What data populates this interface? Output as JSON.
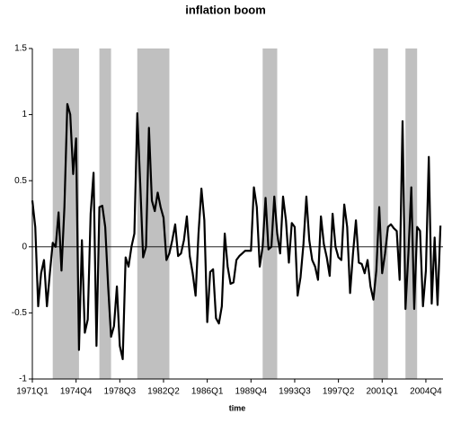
{
  "chart_data": {
    "type": "line",
    "title": "inflation boom",
    "x_label": "time",
    "categories": [
      "1971Q1",
      null,
      null,
      null,
      null,
      null,
      null,
      null,
      null,
      null,
      null,
      null,
      null,
      null,
      null,
      "1974Q4",
      null,
      null,
      null,
      null,
      null,
      null,
      null,
      null,
      null,
      null,
      null,
      null,
      null,
      null,
      "1978Q3",
      null,
      null,
      null,
      null,
      null,
      null,
      null,
      null,
      null,
      null,
      null,
      null,
      null,
      null,
      "1982Q2",
      null,
      null,
      null,
      null,
      null,
      null,
      null,
      null,
      null,
      null,
      null,
      null,
      null,
      null,
      "1986Q1",
      null,
      null,
      null,
      null,
      null,
      null,
      null,
      null,
      null,
      null,
      null,
      null,
      null,
      null,
      "1989Q4",
      null,
      null,
      null,
      null,
      null,
      null,
      null,
      null,
      null,
      null,
      null,
      null,
      null,
      null,
      "1993Q3",
      null,
      null,
      null,
      null,
      null,
      null,
      null,
      null,
      null,
      null,
      null,
      null,
      null,
      null,
      "1997Q2",
      null,
      null,
      null,
      null,
      null,
      null,
      null,
      null,
      null,
      null,
      null,
      null,
      null,
      null,
      "2001Q1",
      null,
      null,
      null,
      null,
      null,
      null,
      null,
      null,
      null,
      null,
      null,
      null,
      null,
      null,
      "2004Q4",
      null,
      null,
      null,
      null,
      null
    ],
    "values": [
      0.35,
      0.15,
      -0.45,
      -0.2,
      -0.1,
      -0.45,
      -0.2,
      0.03,
      0.0,
      0.26,
      -0.18,
      0.3,
      1.08,
      1.0,
      0.55,
      0.82,
      -0.78,
      0.05,
      -0.65,
      -0.55,
      0.25,
      0.56,
      -0.75,
      0.3,
      0.31,
      0.15,
      -0.3,
      -0.68,
      -0.6,
      -0.3,
      -0.75,
      -0.85,
      -0.08,
      -0.15,
      0.0,
      0.1,
      1.01,
      0.48,
      -0.08,
      0.0,
      0.9,
      0.35,
      0.27,
      0.41,
      0.3,
      0.22,
      -0.1,
      -0.05,
      0.05,
      0.17,
      -0.07,
      -0.05,
      0.05,
      0.23,
      -0.07,
      -0.2,
      -0.37,
      0.1,
      0.44,
      0.2,
      -0.57,
      -0.19,
      -0.17,
      -0.54,
      -0.58,
      -0.45,
      0.1,
      -0.15,
      -0.28,
      -0.27,
      -0.1,
      -0.07,
      -0.05,
      -0.03,
      -0.03,
      -0.03,
      0.45,
      0.3,
      -0.15,
      0.0,
      0.37,
      -0.02,
      0.0,
      0.38,
      0.1,
      -0.05,
      0.38,
      0.2,
      -0.12,
      0.18,
      0.15,
      -0.37,
      -0.23,
      0.02,
      0.38,
      0.05,
      -0.1,
      -0.15,
      -0.25,
      0.23,
      0.02,
      -0.08,
      -0.22,
      0.25,
      0.0,
      -0.08,
      -0.1,
      0.32,
      0.15,
      -0.35,
      -0.05,
      0.2,
      -0.12,
      -0.13,
      -0.2,
      -0.1,
      -0.3,
      -0.4,
      -0.18,
      0.3,
      -0.2,
      -0.05,
      0.15,
      0.17,
      0.14,
      0.12,
      -0.25,
      0.95,
      -0.47,
      -0.05,
      0.45,
      -0.47,
      0.15,
      0.12,
      -0.45,
      -0.18,
      0.68,
      -0.43,
      0.07,
      -0.44,
      0.16
    ],
    "color": "#000000",
    "bands": [
      [
        7,
        16
      ],
      [
        23,
        27
      ],
      [
        36,
        47
      ],
      [
        79,
        84
      ],
      [
        117,
        122
      ],
      [
        128,
        132
      ]
    ],
    "band_color": "#c0c0c0",
    "ylim": [
      -1,
      1.5
    ],
    "yticks": [
      -1,
      -0.5,
      0,
      0.5,
      1,
      1.5
    ],
    "grid": false
  }
}
